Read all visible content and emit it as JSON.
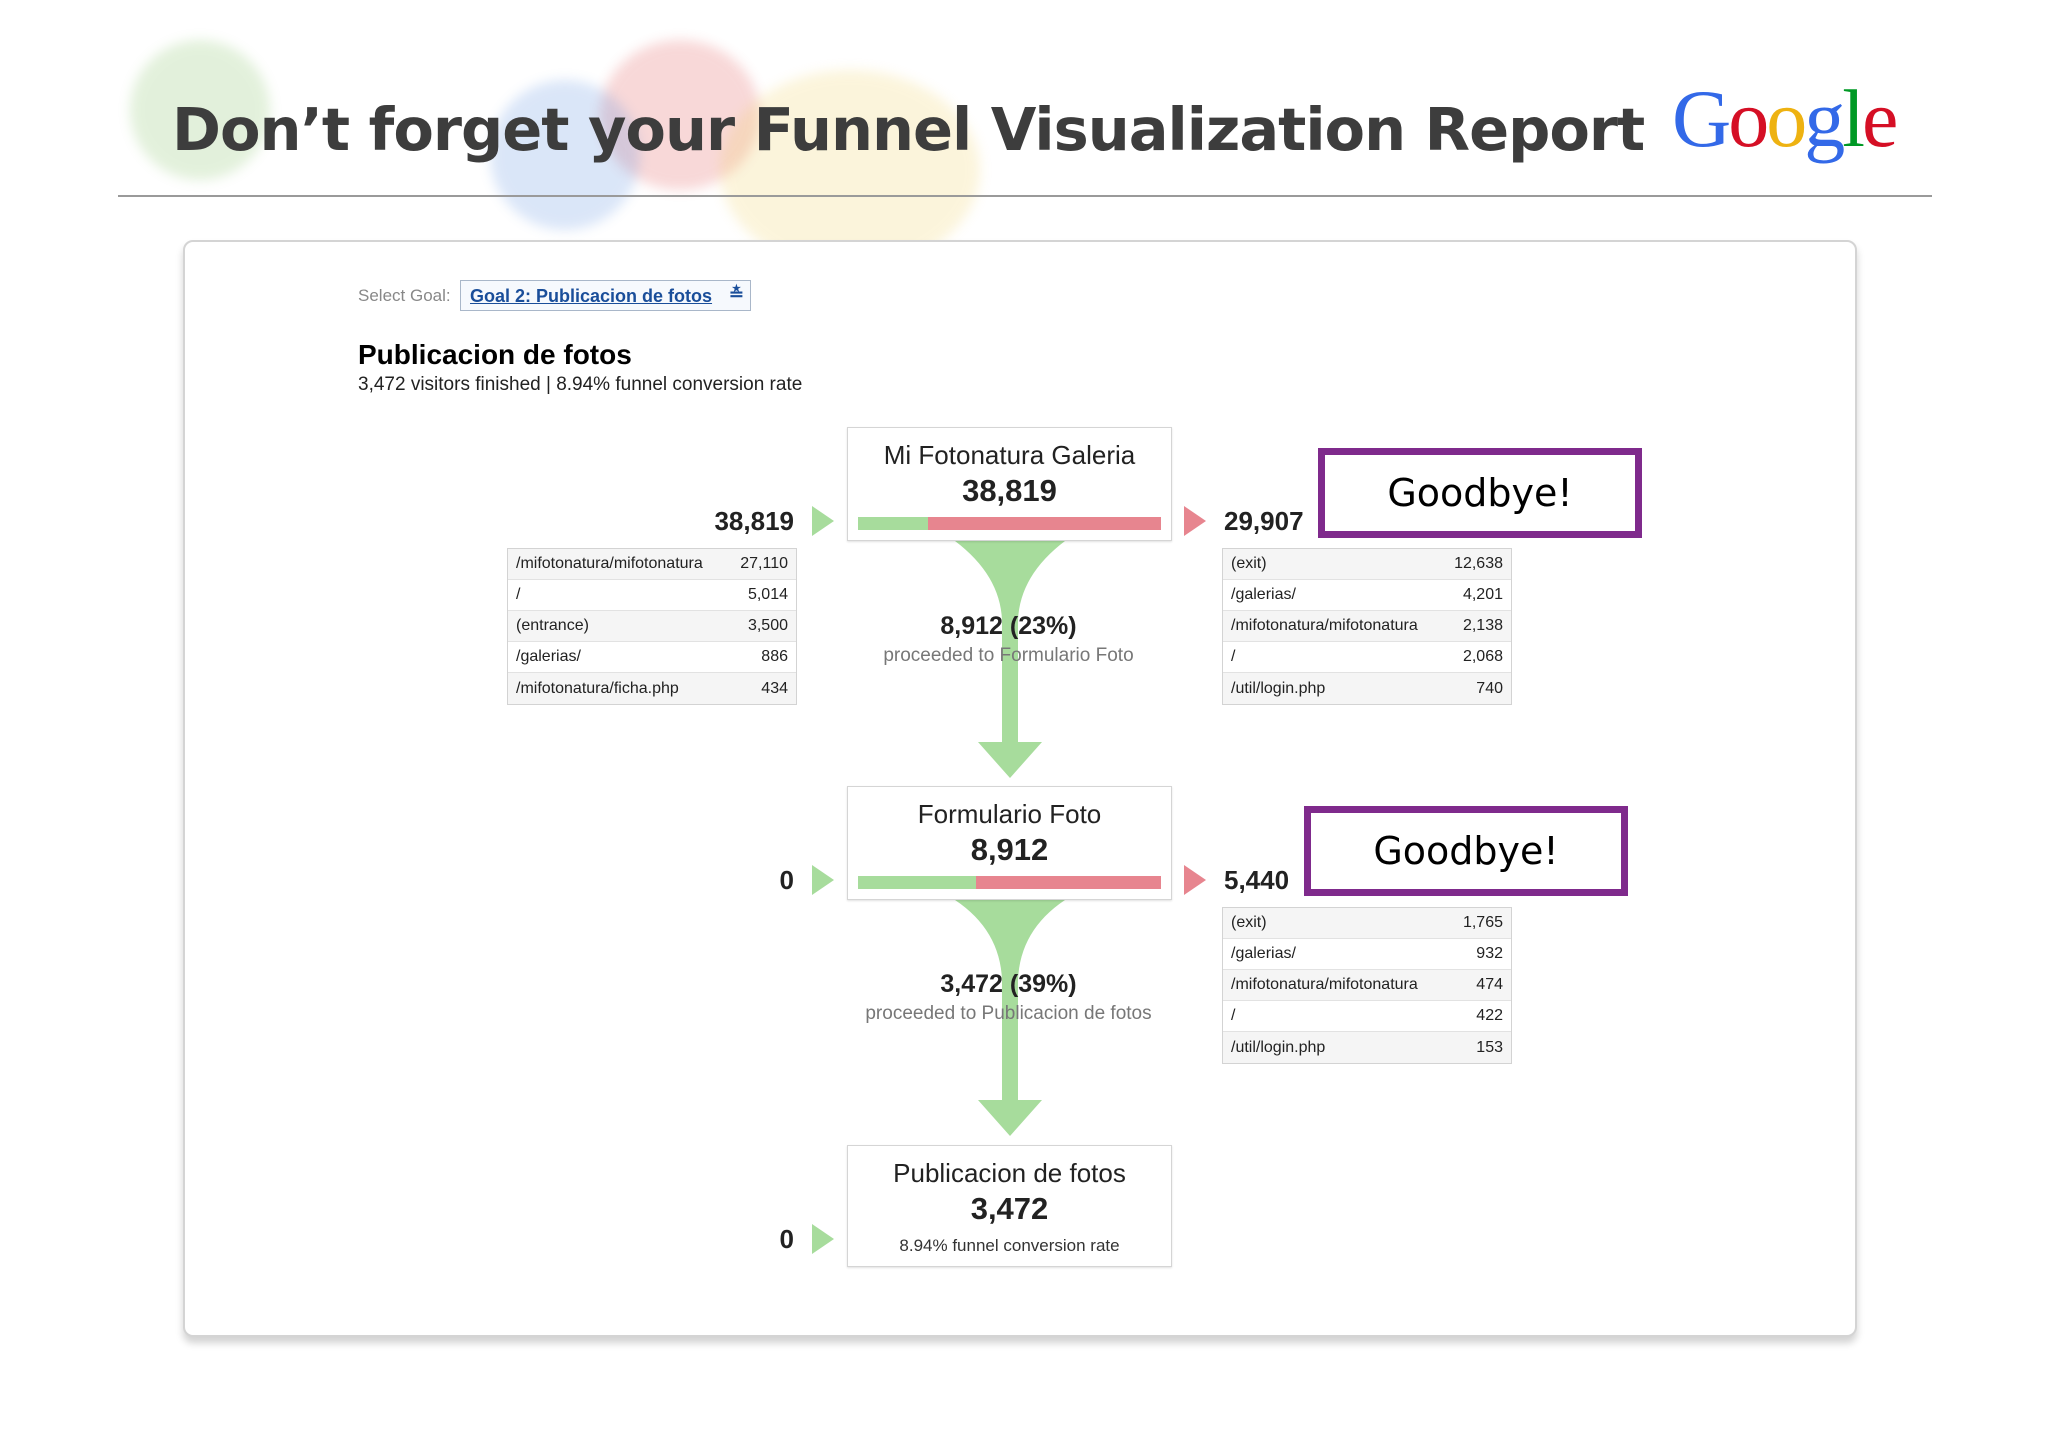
{
  "slide": {
    "title": "Don’t forget your Funnel Visualization Report",
    "logo_letters": [
      {
        "ch": "G",
        "color": "#3369e8"
      },
      {
        "ch": "o",
        "color": "#d50f25"
      },
      {
        "ch": "o",
        "color": "#eeb211"
      },
      {
        "ch": "g",
        "color": "#3369e8"
      },
      {
        "ch": "l",
        "color": "#009925"
      },
      {
        "ch": "e",
        "color": "#d50f25"
      }
    ]
  },
  "report": {
    "select_goal_label": "Select Goal:",
    "goal_value": "Goal 2: Publicacion de fotos",
    "title": "Publicacion de fotos",
    "subtitle": "3,472 visitors finished | 8.94% funnel conversion rate"
  },
  "steps": [
    {
      "name": "Mi Fotonatura Galeria",
      "count": "38,819",
      "entrances": "38,819",
      "exits": "29,907",
      "proceed_fraction": 0.23,
      "entrance_table": [
        {
          "url": "/mifotonatura/mifotonatura",
          "value": "27,110"
        },
        {
          "url": "/",
          "value": "5,014"
        },
        {
          "url": "(entrance)",
          "value": "3,500"
        },
        {
          "url": "/galerias/",
          "value": "886"
        },
        {
          "url": "/mifotonatura/ficha.php",
          "value": "434"
        }
      ],
      "exit_table": [
        {
          "url": "(exit)",
          "value": "12,638"
        },
        {
          "url": "/galerias/",
          "value": "4,201"
        },
        {
          "url": "/mifotonatura/mifotonatura",
          "value": "2,138"
        },
        {
          "url": "/",
          "value": "2,068"
        },
        {
          "url": "/util/login.php",
          "value": "740"
        }
      ],
      "proceeded_count": "8,912 (23%)",
      "proceeded_text": "proceeded to Formulario Foto"
    },
    {
      "name": "Formulario Foto",
      "count": "8,912",
      "entrances": "0",
      "exits": "5,440",
      "proceed_fraction": 0.39,
      "exit_table": [
        {
          "url": "(exit)",
          "value": "1,765"
        },
        {
          "url": "/galerias/",
          "value": "932"
        },
        {
          "url": "/mifotonatura/mifotonatura",
          "value": "474"
        },
        {
          "url": "/",
          "value": "422"
        },
        {
          "url": "/util/login.php",
          "value": "153"
        }
      ],
      "proceeded_count": "3,472 (39%)",
      "proceeded_text": "proceeded to Publicacion de fotos"
    },
    {
      "name": "Publicacion de fotos",
      "count": "3,472",
      "entrances": "0",
      "note": "8.94% funnel conversion rate"
    }
  ],
  "callouts": {
    "goodbye_1": "Goodbye!",
    "goodbye_2": "Goodbye!"
  }
}
